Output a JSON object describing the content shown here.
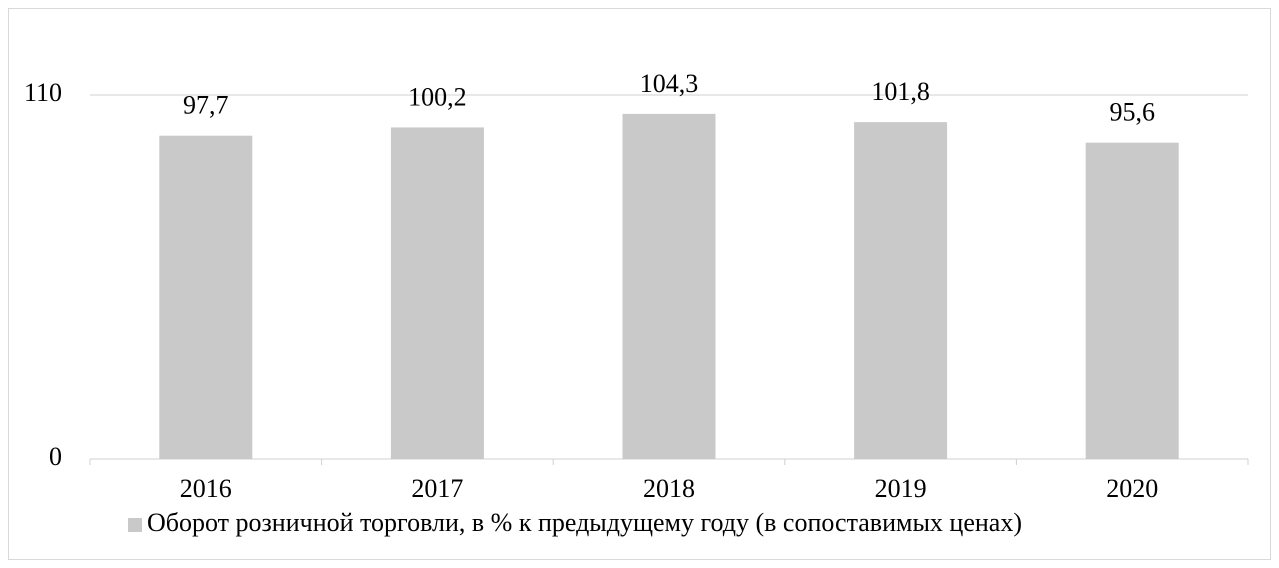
{
  "chart_data": {
    "type": "bar",
    "categories": [
      "2016",
      "2017",
      "2018",
      "2019",
      "2020"
    ],
    "series": [
      {
        "name": "Оборот розничной торговли, в % к предыдущему году (в сопоставимых ценах)",
        "color": "#c9c9c9",
        "values": [
          97.7,
          100.2,
          104.3,
          101.8,
          95.6
        ],
        "value_labels": [
          "97,7",
          "100,2",
          "104,3",
          "101,8",
          "95,6"
        ]
      }
    ],
    "ylim": [
      0,
      110
    ],
    "yticks": [
      0,
      110
    ],
    "grid": true,
    "legend": "bottom"
  }
}
